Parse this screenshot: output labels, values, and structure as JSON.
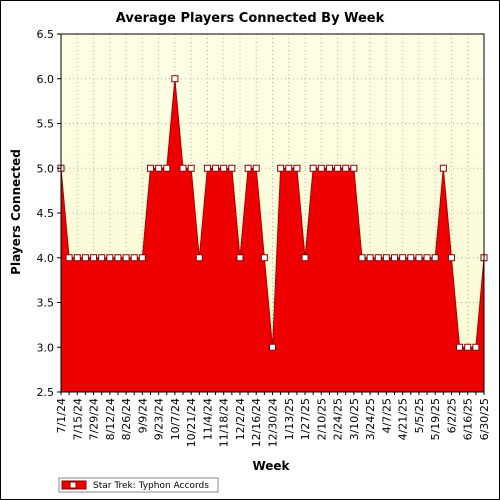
{
  "chart_data": {
    "type": "area",
    "title": "Average Players Connected By Week",
    "xlabel": "Week",
    "ylabel": "Players Connected",
    "ylim": [
      2.5,
      6.5
    ],
    "yticks": [
      "2.5",
      "3.0",
      "3.5",
      "4.0",
      "4.5",
      "5.0",
      "5.5",
      "6.0",
      "6.5"
    ],
    "grid": true,
    "legend_placement": "bottom-left",
    "x": [
      "7/1/24",
      "7/8/24",
      "7/15/24",
      "7/22/24",
      "7/29/24",
      "8/5/24",
      "8/12/24",
      "8/19/24",
      "8/26/24",
      "9/2/24",
      "9/9/24",
      "9/16/24",
      "9/23/24",
      "9/30/24",
      "10/7/24",
      "10/14/24",
      "10/21/24",
      "10/28/24",
      "11/4/24",
      "11/11/24",
      "11/18/24",
      "11/25/24",
      "12/2/24",
      "12/9/24",
      "12/16/24",
      "12/23/24",
      "12/30/24",
      "1/6/25",
      "1/13/25",
      "1/20/25",
      "1/27/25",
      "2/3/25",
      "2/10/25",
      "2/17/25",
      "2/24/25",
      "3/3/25",
      "3/10/25",
      "3/17/25",
      "3/24/25",
      "3/31/25",
      "4/7/25",
      "4/14/25",
      "4/21/25",
      "4/28/25",
      "5/5/25",
      "5/12/25",
      "5/19/25",
      "5/26/25",
      "6/2/25",
      "6/9/25",
      "6/16/25",
      "6/23/25",
      "6/30/25"
    ],
    "x_tick_labels": [
      "7/1/24",
      "7/15/24",
      "7/29/24",
      "8/12/24",
      "8/26/24",
      "9/9/24",
      "9/23/24",
      "10/7/24",
      "10/21/24",
      "11/4/24",
      "11/18/24",
      "12/2/24",
      "12/16/24",
      "12/30/24",
      "1/13/25",
      "1/27/25",
      "2/10/25",
      "2/24/25",
      "3/10/25",
      "3/24/25",
      "4/7/25",
      "4/21/25",
      "5/5/25",
      "5/19/25",
      "6/2/25",
      "6/16/25",
      "6/30/25"
    ],
    "series": [
      {
        "name": "Star Trek: Typhon Accords",
        "color": "#ee0000",
        "values": [
          5,
          4,
          4,
          4,
          4,
          4,
          4,
          4,
          4,
          4,
          4,
          5,
          5,
          5,
          6,
          5,
          5,
          4,
          5,
          5,
          5,
          5,
          4,
          5,
          5,
          4,
          3,
          5,
          5,
          5,
          4,
          5,
          5,
          5,
          5,
          5,
          5,
          4,
          4,
          4,
          4,
          4,
          4,
          4,
          4,
          4,
          4,
          5,
          4,
          3,
          3,
          3,
          4
        ]
      }
    ]
  },
  "colors": {
    "plot_bg_top": "#ffffe6",
    "plot_bg_bottom": "#fafad2",
    "fill": "#ee0000",
    "grid": "#b0b0b0"
  }
}
